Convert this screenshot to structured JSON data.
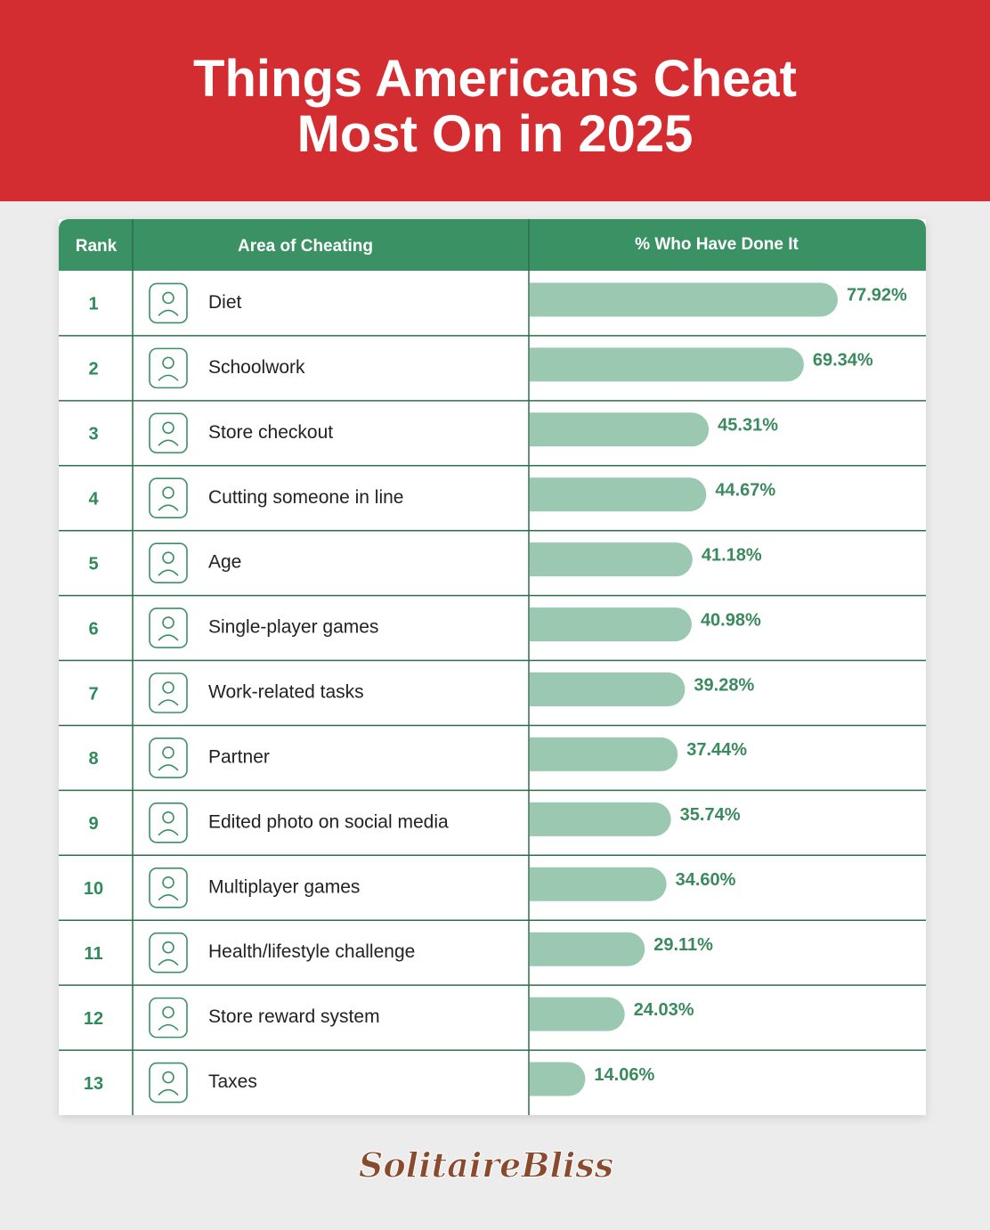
{
  "chart_data": {
    "type": "bar",
    "orientation": "horizontal",
    "title": "Things Americans Cheat Most On in 2025",
    "columns": [
      "Rank",
      "Area of Cheating",
      "% Who Have Done It"
    ],
    "ranks": [
      1,
      2,
      3,
      4,
      5,
      6,
      7,
      8,
      9,
      10,
      11,
      12,
      13
    ],
    "categories": [
      "Diet",
      "Schoolwork",
      "Store checkout",
      "Cutting someone in line",
      "Age",
      "Single-player games",
      "Work-related tasks",
      "Partner",
      "Edited photo on social media",
      "Multiplayer games",
      "Health/lifestyle challenge",
      "Store reward system",
      "Taxes"
    ],
    "values": [
      77.92,
      69.34,
      45.31,
      44.67,
      41.18,
      40.98,
      39.28,
      37.44,
      35.74,
      34.6,
      29.11,
      24.03,
      14.06
    ],
    "value_labels": [
      "77.92%",
      "69.34%",
      "45.31%",
      "44.67%",
      "41.18%",
      "40.98%",
      "39.28%",
      "37.44%",
      "35.74%",
      "34.60%",
      "29.11%",
      "24.03%",
      "14.06%"
    ],
    "color": "#9ac8b0",
    "footer": "SolitaireBliss"
  }
}
